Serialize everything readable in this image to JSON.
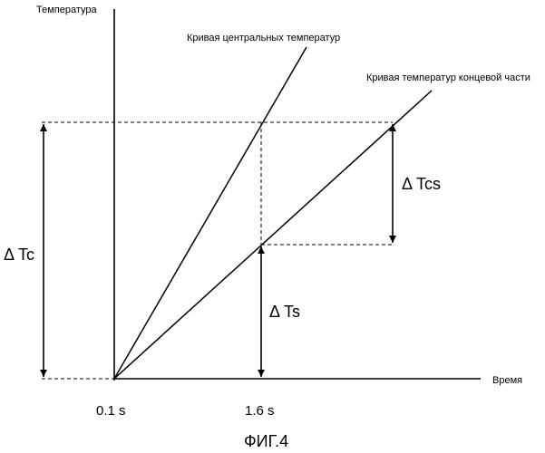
{
  "axes": {
    "y_label": "Температура",
    "x_label": "Время"
  },
  "curves": {
    "central": "Кривая центральных температур",
    "end_part": "Кривая температур концевой части"
  },
  "dimensions": {
    "delta_tc": "Δ Tc",
    "delta_ts": "Δ Ts",
    "delta_tcs": "Δ Tcs"
  },
  "ticks": {
    "t1": "0.1 s",
    "t2": "1.6 s"
  },
  "caption": "ФИГ.4"
}
